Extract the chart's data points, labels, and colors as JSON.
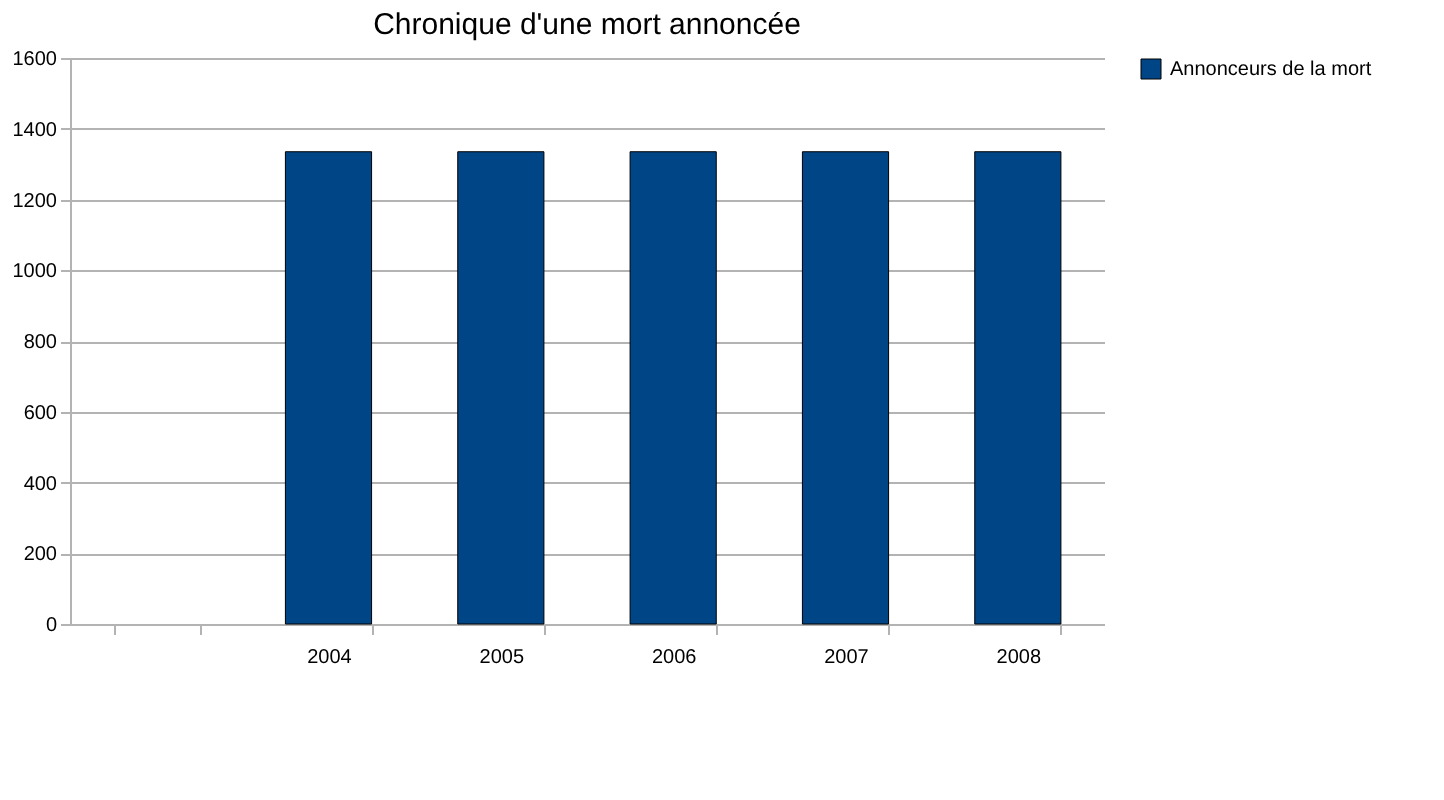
{
  "chart_data": {
    "type": "bar",
    "title": "Chronique d'une mort annoncée",
    "categories": [
      null,
      "2004",
      "2005",
      "2006",
      "2007",
      "2008"
    ],
    "series": [
      {
        "name": "Annonceurs de la mort",
        "color": "#004586",
        "values": [
          null,
          1335,
          1335,
          1335,
          1335,
          1335
        ]
      }
    ],
    "ylim": [
      0,
      1600
    ],
    "yticks": [
      0,
      200,
      400,
      600,
      800,
      1000,
      1200,
      1400,
      1600
    ],
    "grid": "y",
    "legend": "right"
  }
}
